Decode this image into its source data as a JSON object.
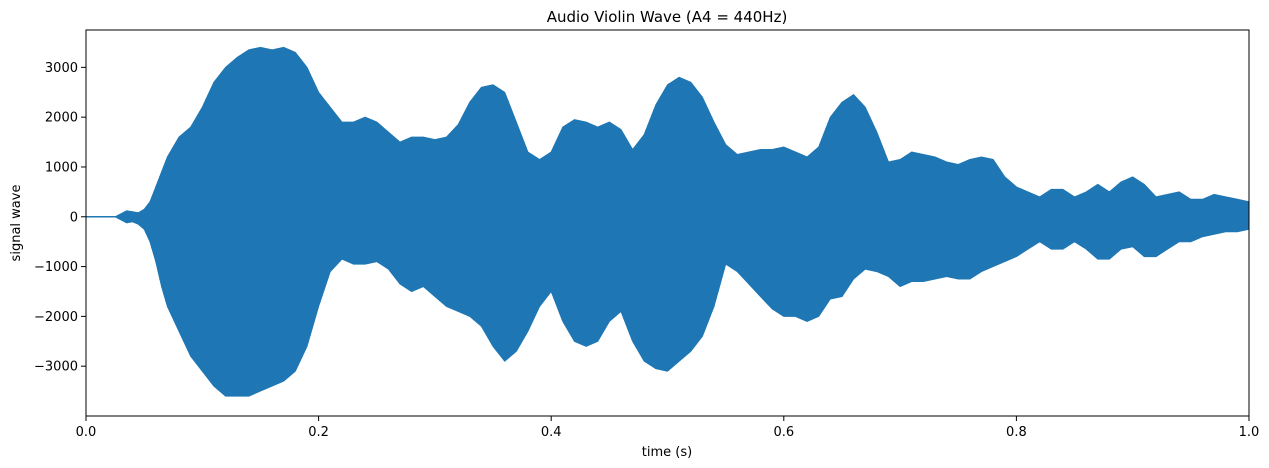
{
  "chart_data": {
    "type": "area",
    "title": "Audio Violin Wave (A4 = 440Hz)",
    "xlabel": "time (s)",
    "ylabel": "signal wave",
    "xlim": [
      0.0,
      1.0
    ],
    "ylim": [
      -4000,
      3750
    ],
    "x_ticks": [
      0.0,
      0.2,
      0.4,
      0.6,
      0.8,
      1.0
    ],
    "x_tick_labels": [
      "0.0",
      "0.2",
      "0.4",
      "0.6",
      "0.8",
      "1.0"
    ],
    "y_ticks": [
      -3000,
      -2000,
      -1000,
      0,
      1000,
      2000,
      3000
    ],
    "y_tick_labels": [
      "−3000",
      "−2000",
      "−1000",
      "0",
      "1000",
      "2000",
      "3000"
    ],
    "grid": false,
    "series": [
      {
        "color": "#1f77b4",
        "envelope": {
          "time": [
            0.0,
            0.025,
            0.03,
            0.035,
            0.04,
            0.045,
            0.05,
            0.055,
            0.06,
            0.065,
            0.07,
            0.08,
            0.09,
            0.1,
            0.11,
            0.12,
            0.13,
            0.14,
            0.15,
            0.16,
            0.17,
            0.18,
            0.19,
            0.2,
            0.21,
            0.22,
            0.23,
            0.24,
            0.25,
            0.26,
            0.27,
            0.28,
            0.29,
            0.3,
            0.31,
            0.32,
            0.33,
            0.34,
            0.35,
            0.36,
            0.37,
            0.38,
            0.39,
            0.4,
            0.41,
            0.42,
            0.43,
            0.44,
            0.45,
            0.46,
            0.47,
            0.48,
            0.49,
            0.5,
            0.51,
            0.52,
            0.53,
            0.54,
            0.55,
            0.56,
            0.57,
            0.58,
            0.59,
            0.6,
            0.61,
            0.62,
            0.63,
            0.64,
            0.65,
            0.66,
            0.67,
            0.68,
            0.69,
            0.7,
            0.71,
            0.72,
            0.73,
            0.74,
            0.75,
            0.76,
            0.77,
            0.78,
            0.79,
            0.8,
            0.81,
            0.82,
            0.83,
            0.84,
            0.85,
            0.86,
            0.87,
            0.88,
            0.89,
            0.9,
            0.91,
            0.92,
            0.93,
            0.94,
            0.95,
            0.96,
            0.97,
            0.98,
            0.99,
            1.0
          ],
          "upper": [
            0,
            0,
            60,
            120,
            100,
            80,
            150,
            300,
            600,
            900,
            1200,
            1600,
            1800,
            2200,
            2700,
            3000,
            3200,
            3350,
            3400,
            3350,
            3400,
            3300,
            3000,
            2500,
            2200,
            1900,
            1900,
            2000,
            1900,
            1700,
            1500,
            1600,
            1600,
            1550,
            1600,
            1850,
            2300,
            2600,
            2650,
            2500,
            1900,
            1300,
            1150,
            1300,
            1800,
            1950,
            1900,
            1800,
            1900,
            1750,
            1350,
            1650,
            2250,
            2650,
            2800,
            2700,
            2400,
            1900,
            1450,
            1250,
            1300,
            1350,
            1350,
            1400,
            1300,
            1200,
            1400,
            2000,
            2300,
            2450,
            2200,
            1700,
            1100,
            1150,
            1300,
            1250,
            1200,
            1100,
            1050,
            1150,
            1200,
            1150,
            800,
            600,
            500,
            400,
            550,
            550,
            400,
            500,
            650,
            500,
            700,
            800,
            650,
            400,
            450,
            500,
            350,
            350,
            450,
            400,
            350,
            300
          ],
          "lower": [
            0,
            0,
            -60,
            -120,
            -100,
            -150,
            -250,
            -500,
            -900,
            -1400,
            -1800,
            -2300,
            -2800,
            -3100,
            -3400,
            -3600,
            -3600,
            -3600,
            -3500,
            -3400,
            -3300,
            -3100,
            -2600,
            -1800,
            -1100,
            -850,
            -950,
            -950,
            -900,
            -1050,
            -1350,
            -1500,
            -1400,
            -1600,
            -1800,
            -1900,
            -2000,
            -2200,
            -2600,
            -2900,
            -2700,
            -2300,
            -1800,
            -1500,
            -2100,
            -2500,
            -2600,
            -2500,
            -2100,
            -1900,
            -2500,
            -2900,
            -3050,
            -3100,
            -2900,
            -2700,
            -2400,
            -1800,
            -950,
            -1100,
            -1350,
            -1600,
            -1850,
            -2000,
            -2000,
            -2100,
            -2000,
            -1650,
            -1600,
            -1250,
            -1050,
            -1100,
            -1200,
            -1400,
            -1300,
            -1300,
            -1250,
            -1200,
            -1250,
            -1250,
            -1100,
            -1000,
            -900,
            -800,
            -650,
            -500,
            -650,
            -650,
            -500,
            -650,
            -850,
            -850,
            -650,
            -600,
            -800,
            -800,
            -650,
            -500,
            -500,
            -400,
            -350,
            -300,
            -300,
            -250
          ]
        }
      }
    ]
  }
}
